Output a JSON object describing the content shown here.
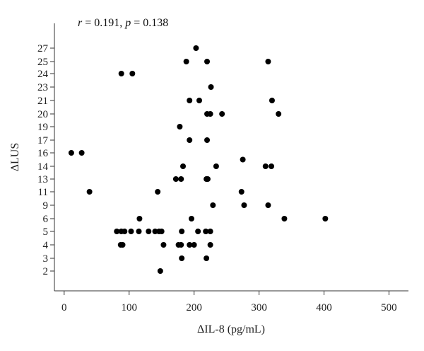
{
  "chart_data": {
    "type": "scatter",
    "annotation": {
      "r_symbol": "r",
      "r_text": " = 0.191, ",
      "p_symbol": "p",
      "p_text": " = 0.138"
    },
    "xlabel": "ΔIL-8 (pg/mL)",
    "ylabel": "ΔLUS",
    "xlim": [
      -15,
      530
    ],
    "xticks": [
      0,
      100,
      200,
      300,
      400,
      500
    ],
    "xtick_labels": [
      "0",
      "100",
      "200",
      "300",
      "400",
      "500"
    ],
    "yticks": [
      2,
      3,
      4,
      5,
      6,
      9,
      11,
      13,
      14,
      16,
      17,
      19,
      20,
      21,
      23,
      24,
      25,
      27
    ],
    "ytick_labels": [
      "2",
      "3",
      "4",
      "5",
      "6",
      "9",
      "11",
      "13",
      "14",
      "16",
      "17",
      "19",
      "20",
      "21",
      "23",
      "24",
      "25",
      "27"
    ],
    "grid": false,
    "point_color": "#000000",
    "points": [
      {
        "x": 203,
        "y": 27
      },
      {
        "x": 188,
        "y": 25
      },
      {
        "x": 220,
        "y": 25
      },
      {
        "x": 314,
        "y": 25
      },
      {
        "x": 88,
        "y": 24
      },
      {
        "x": 105,
        "y": 24
      },
      {
        "x": 226,
        "y": 23
      },
      {
        "x": 193,
        "y": 21
      },
      {
        "x": 208,
        "y": 21
      },
      {
        "x": 320,
        "y": 21
      },
      {
        "x": 220,
        "y": 20
      },
      {
        "x": 225,
        "y": 20
      },
      {
        "x": 243,
        "y": 20
      },
      {
        "x": 330,
        "y": 20
      },
      {
        "x": 178,
        "y": 19
      },
      {
        "x": 193,
        "y": 17
      },
      {
        "x": 220,
        "y": 17
      },
      {
        "x": 11,
        "y": 16
      },
      {
        "x": 27,
        "y": 16
      },
      {
        "x": 275,
        "y": 15
      },
      {
        "x": 183,
        "y": 14
      },
      {
        "x": 234,
        "y": 14
      },
      {
        "x": 310,
        "y": 14
      },
      {
        "x": 319,
        "y": 14
      },
      {
        "x": 172,
        "y": 13
      },
      {
        "x": 180,
        "y": 13
      },
      {
        "x": 219,
        "y": 13
      },
      {
        "x": 221,
        "y": 13
      },
      {
        "x": 39,
        "y": 11
      },
      {
        "x": 144,
        "y": 11
      },
      {
        "x": 273,
        "y": 11
      },
      {
        "x": 229,
        "y": 9
      },
      {
        "x": 277,
        "y": 9
      },
      {
        "x": 314,
        "y": 9
      },
      {
        "x": 116,
        "y": 6
      },
      {
        "x": 196,
        "y": 6
      },
      {
        "x": 339,
        "y": 6
      },
      {
        "x": 402,
        "y": 6
      },
      {
        "x": 81,
        "y": 5
      },
      {
        "x": 88,
        "y": 5
      },
      {
        "x": 93,
        "y": 5
      },
      {
        "x": 103,
        "y": 5
      },
      {
        "x": 115,
        "y": 5
      },
      {
        "x": 130,
        "y": 5
      },
      {
        "x": 140,
        "y": 5
      },
      {
        "x": 146,
        "y": 5
      },
      {
        "x": 150,
        "y": 5
      },
      {
        "x": 181,
        "y": 5
      },
      {
        "x": 206,
        "y": 5
      },
      {
        "x": 218,
        "y": 5
      },
      {
        "x": 225,
        "y": 5
      },
      {
        "x": 87,
        "y": 4
      },
      {
        "x": 90,
        "y": 4
      },
      {
        "x": 153,
        "y": 4
      },
      {
        "x": 176,
        "y": 4
      },
      {
        "x": 180,
        "y": 4
      },
      {
        "x": 193,
        "y": 4
      },
      {
        "x": 200,
        "y": 4
      },
      {
        "x": 225,
        "y": 4
      },
      {
        "x": 181,
        "y": 3
      },
      {
        "x": 219,
        "y": 3
      },
      {
        "x": 148,
        "y": 2
      }
    ]
  }
}
